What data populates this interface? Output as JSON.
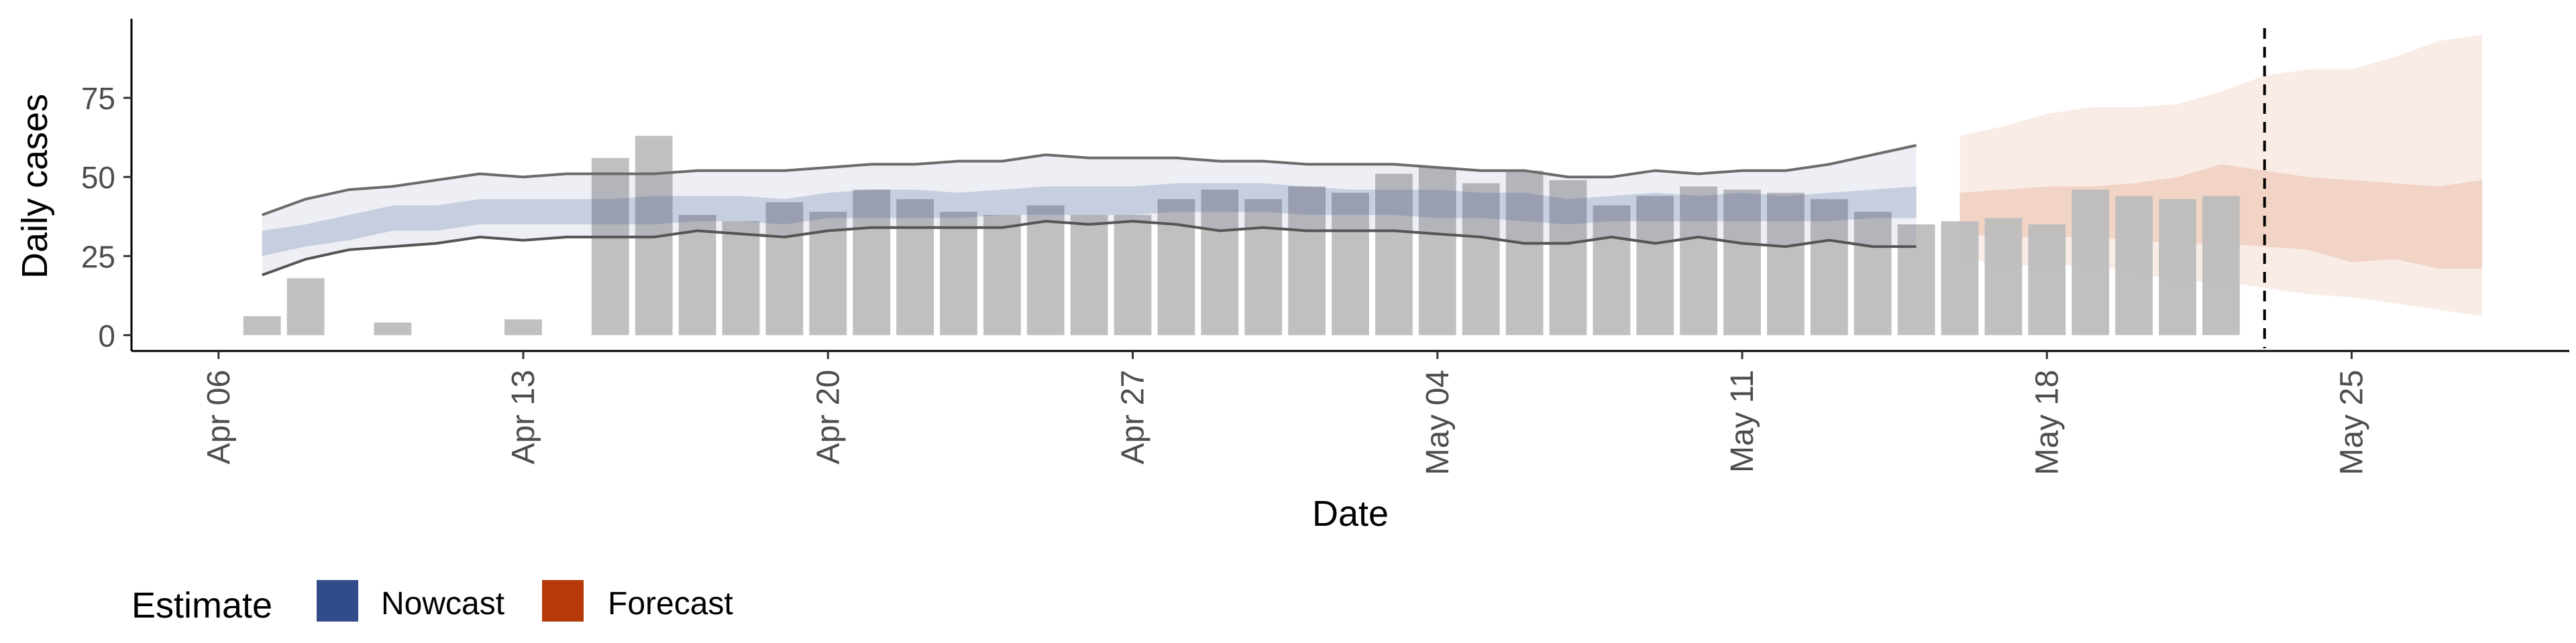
{
  "chart_data": {
    "type": "bar",
    "xlabel": "Date",
    "ylabel": "Daily cases",
    "x_ticks": [
      "Apr 06",
      "Apr 13",
      "Apr 20",
      "Apr 27",
      "May 04",
      "May 11",
      "May 18",
      "May 25"
    ],
    "y_ticks": [
      "0",
      "25",
      "50",
      "75"
    ],
    "ylim": [
      -5,
      100
    ],
    "xlim": [
      "2020-04-04",
      "2020-05-30"
    ],
    "grid": false,
    "dates": [
      "2020-04-06",
      "2020-04-07",
      "2020-04-08",
      "2020-04-09",
      "2020-04-10",
      "2020-04-11",
      "2020-04-12",
      "2020-04-13",
      "2020-04-14",
      "2020-04-15",
      "2020-04-16",
      "2020-04-17",
      "2020-04-18",
      "2020-04-19",
      "2020-04-20",
      "2020-04-21",
      "2020-04-22",
      "2020-04-23",
      "2020-04-24",
      "2020-04-25",
      "2020-04-26",
      "2020-04-27",
      "2020-04-28",
      "2020-04-29",
      "2020-04-30",
      "2020-05-01",
      "2020-05-02",
      "2020-05-03",
      "2020-05-04",
      "2020-05-05",
      "2020-05-06",
      "2020-05-07",
      "2020-05-08",
      "2020-05-09",
      "2020-05-10",
      "2020-05-11",
      "2020-05-12",
      "2020-05-13",
      "2020-05-14",
      "2020-05-15",
      "2020-05-16",
      "2020-05-17",
      "2020-05-18",
      "2020-05-19",
      "2020-05-20",
      "2020-05-21",
      "2020-05-22",
      "2020-05-23",
      "2020-05-24",
      "2020-05-25",
      "2020-05-26",
      "2020-05-27",
      "2020-05-28"
    ],
    "reported_cases": [
      0,
      6,
      18,
      0,
      4,
      0,
      0,
      5,
      0,
      56,
      63,
      38,
      36,
      42,
      39,
      46,
      43,
      39,
      38,
      41,
      38,
      38,
      43,
      46,
      43,
      47,
      45,
      51,
      53,
      48,
      52,
      49,
      41,
      44,
      47,
      46,
      45,
      43,
      39,
      35,
      36,
      37,
      35,
      46,
      44,
      43,
      44,
      null,
      null,
      null,
      null,
      null,
      null
    ],
    "nowcast": {
      "dates": [
        "2020-04-07",
        "2020-04-08",
        "2020-04-09",
        "2020-04-10",
        "2020-04-11",
        "2020-04-12",
        "2020-04-13",
        "2020-04-14",
        "2020-04-15",
        "2020-04-16",
        "2020-04-17",
        "2020-04-18",
        "2020-04-19",
        "2020-04-20",
        "2020-04-21",
        "2020-04-22",
        "2020-04-23",
        "2020-04-24",
        "2020-04-25",
        "2020-04-26",
        "2020-04-27",
        "2020-04-28",
        "2020-04-29",
        "2020-04-30",
        "2020-05-01",
        "2020-05-02",
        "2020-05-03",
        "2020-05-04",
        "2020-05-05",
        "2020-05-06",
        "2020-05-07",
        "2020-05-08",
        "2020-05-09",
        "2020-05-10",
        "2020-05-11",
        "2020-05-12",
        "2020-05-13",
        "2020-05-14",
        "2020-05-15"
      ],
      "upper90": [
        38,
        43,
        46,
        47,
        49,
        51,
        50,
        51,
        51,
        51,
        52,
        52,
        52,
        53,
        54,
        54,
        55,
        55,
        57,
        56,
        56,
        56,
        55,
        55,
        54,
        54,
        54,
        53,
        52,
        52,
        50,
        50,
        52,
        51,
        52,
        52,
        54,
        57,
        60
      ],
      "lower90": [
        19,
        24,
        27,
        28,
        29,
        31,
        30,
        31,
        31,
        31,
        33,
        32,
        31,
        33,
        34,
        34,
        34,
        34,
        36,
        35,
        36,
        35,
        33,
        34,
        33,
        33,
        33,
        32,
        31,
        29,
        29,
        31,
        29,
        31,
        29,
        28,
        30,
        28,
        28
      ],
      "upper50": [
        33,
        35,
        38,
        41,
        41,
        43,
        43,
        43,
        43,
        44,
        44,
        44,
        43,
        45,
        46,
        46,
        45,
        46,
        47,
        47,
        47,
        48,
        48,
        48,
        47,
        46,
        46,
        46,
        45,
        45,
        43,
        44,
        45,
        44,
        45,
        44,
        45,
        46,
        47
      ],
      "lower50": [
        25,
        28,
        30,
        33,
        33,
        35,
        35,
        35,
        35,
        35,
        36,
        36,
        35,
        37,
        37,
        37,
        37,
        38,
        38,
        38,
        38,
        39,
        39,
        39,
        38,
        38,
        38,
        37,
        37,
        36,
        35,
        36,
        36,
        36,
        36,
        36,
        36,
        37,
        37
      ]
    },
    "forecast": {
      "dates": [
        "2020-05-16",
        "2020-05-17",
        "2020-05-18",
        "2020-05-19",
        "2020-05-20",
        "2020-05-21",
        "2020-05-22",
        "2020-05-23",
        "2020-05-24",
        "2020-05-25",
        "2020-05-26",
        "2020-05-27",
        "2020-05-28"
      ],
      "upper90": [
        63,
        66,
        70,
        72,
        72,
        73,
        77,
        82,
        84,
        84,
        88,
        93,
        95
      ],
      "lower90": [
        25,
        22,
        22,
        22,
        20,
        17,
        17,
        15,
        13,
        12,
        10,
        8,
        6
      ],
      "upper50": [
        45,
        46,
        47,
        47,
        48,
        50,
        54,
        52,
        50,
        49,
        48,
        47,
        49
      ],
      "lower50": [
        32,
        31,
        31,
        31,
        30,
        29,
        29,
        28,
        27,
        23,
        24,
        21,
        21
      ]
    },
    "vline_date": "2020-05-23",
    "legend": {
      "title": "Estimate",
      "items": [
        {
          "label": "Nowcast",
          "color": "#324b8a"
        },
        {
          "label": "Forecast",
          "color": "#b6390a"
        }
      ],
      "position": "bottom-left"
    },
    "colors": {
      "bar": "#bdbdbd",
      "nowcast": "#324b8a",
      "forecast": "#d4693f",
      "vline": "#000000"
    }
  }
}
